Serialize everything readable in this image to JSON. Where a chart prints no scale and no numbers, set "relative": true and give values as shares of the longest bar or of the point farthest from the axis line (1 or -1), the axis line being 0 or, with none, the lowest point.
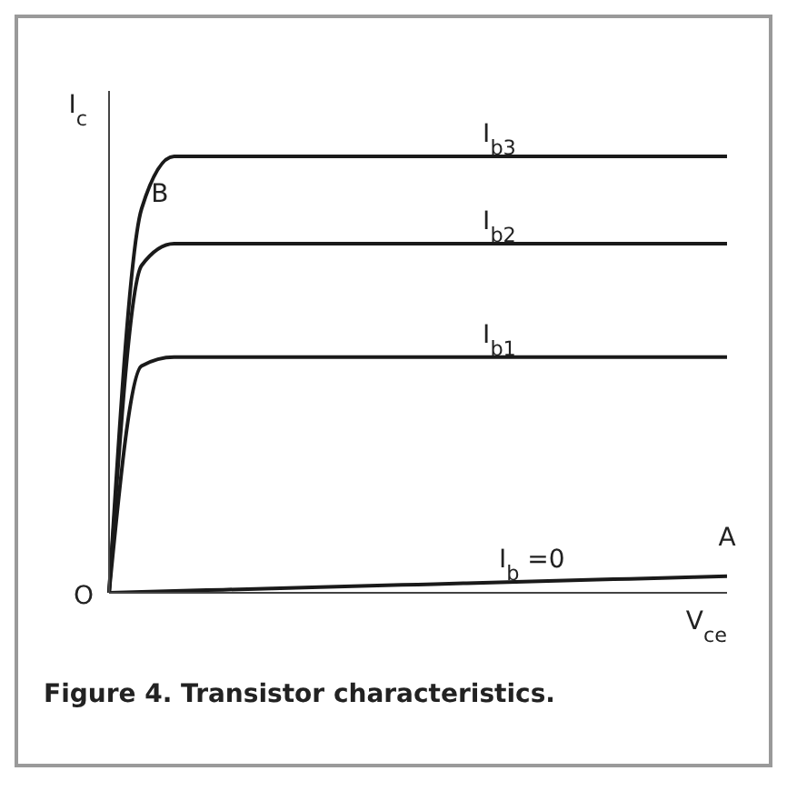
{
  "chart_data": {
    "type": "line",
    "title": "Figure 4. Transistor characteristics.",
    "xlabel": "V$_{ce}$",
    "ylabel": "I$_{c}$",
    "relative": true,
    "marker": "none",
    "categories": [
      null,
      null,
      null,
      null,
      null,
      null,
      null,
      null,
      null,
      null,
      null,
      null,
      null,
      null,
      null,
      null,
      null,
      null,
      null,
      null
    ],
    "series": [
      {
        "name": "I$_{b3}$",
        "color": "#1a1a1a",
        "values": [
          0,
          0.88,
          1,
          1,
          1,
          1,
          1,
          1,
          1,
          1,
          1,
          1,
          1,
          1,
          1,
          1,
          1,
          1,
          1,
          1
        ]
      },
      {
        "name": "I$_{b2}$",
        "color": "#1a1a1a",
        "values": [
          0,
          0.75,
          0.8,
          0.8,
          0.8,
          0.8,
          0.8,
          0.8,
          0.8,
          0.8,
          0.8,
          0.8,
          0.8,
          0.8,
          0.8,
          0.8,
          0.8,
          0.8,
          0.8,
          0.8
        ]
      },
      {
        "name": "I$_{b1}$",
        "color": "#1a1a1a",
        "values": [
          0,
          0.52,
          0.54,
          0.54,
          0.54,
          0.54,
          0.54,
          0.54,
          0.54,
          0.54,
          0.54,
          0.54,
          0.54,
          0.54,
          0.54,
          0.54,
          0.54,
          0.54,
          0.54,
          0.54
        ]
      },
      {
        "name": "I$_{b}$ =0",
        "color": "#1a1a1a",
        "values": [
          0,
          0.002,
          0.004,
          0.006,
          0.008,
          0.01,
          0.012,
          0.014,
          0.016,
          0.018,
          0.02,
          0.022,
          0.024,
          0.026,
          0.028,
          0.03,
          0.032,
          0.034,
          0.036,
          0.038
        ]
      }
    ],
    "annotations": [
      "O",
      "B",
      "A"
    ]
  }
}
